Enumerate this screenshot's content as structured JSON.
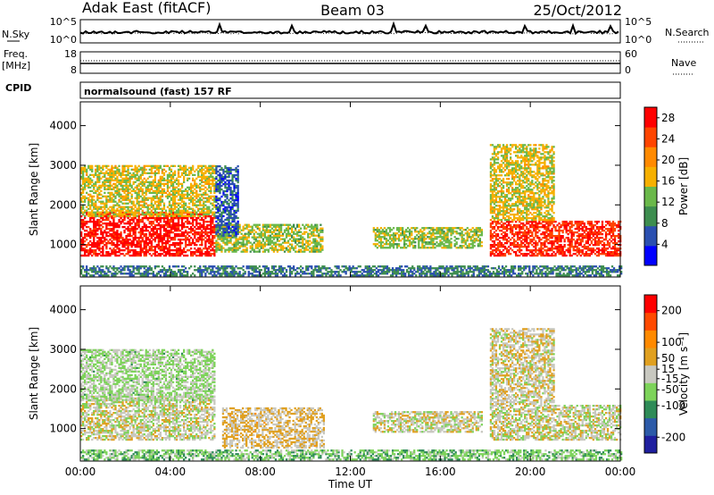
{
  "header": {
    "station": "Adak East (fitACF)",
    "beam": "Beam 03",
    "date": "25/Oct/2012"
  },
  "summary_panels": {
    "noise": {
      "left_label": "N.Sky",
      "left_ticks": [
        "10^5",
        "10^0"
      ],
      "right_ticks": [
        "10^5",
        "10^0"
      ],
      "right_label": "N.Search"
    },
    "freq": {
      "left_label_1": "Freq.",
      "left_label_2": "[MHz]",
      "left_ticks": [
        "18",
        "8"
      ],
      "right_ticks": [
        "60",
        "0"
      ],
      "right_label": "Nave"
    },
    "cpid": {
      "left_label": "CPID",
      "text": "normalsound (fast) 157 RF"
    }
  },
  "colors": {
    "power_scale": [
      "#0000ff",
      "#2a4fb0",
      "#3d8d4f",
      "#6ab84a",
      "#f6b000",
      "#ff8a00",
      "#ff4500",
      "#ff0000"
    ],
    "velocity_scale": [
      "#1f1f9f",
      "#2c5aa8",
      "#2e8b57",
      "#7dd35a",
      "#c8c8c0",
      "#e0a020",
      "#ff8a00",
      "#ff4a00",
      "#ff0000"
    ]
  },
  "chart_data": [
    {
      "type": "heatmap",
      "title": "Power",
      "ylabel": "Slant Range [km]",
      "xlabel": "",
      "x_ticks": [
        "00:00",
        "04:00",
        "08:00",
        "12:00",
        "16:00",
        "20:00",
        "00:00"
      ],
      "xlim_hours": [
        0,
        24
      ],
      "y_ticks": [
        1000,
        2000,
        3000,
        4000
      ],
      "ylim": [
        180,
        4600
      ],
      "colorbar": {
        "label": "Power [dB]",
        "ticks": [
          4,
          8,
          12,
          16,
          20,
          24,
          28
        ],
        "range": [
          0,
          30
        ]
      },
      "regions": [
        {
          "t0": 0.0,
          "t1": 6.0,
          "r0": 700,
          "r1": 1800,
          "value": 28
        },
        {
          "t0": 0.0,
          "t1": 6.0,
          "r0": 1700,
          "r1": 3000,
          "value": 16
        },
        {
          "t0": 6.0,
          "t1": 10.8,
          "r0": 800,
          "r1": 1500,
          "value": 14
        },
        {
          "t0": 6.0,
          "t1": 7.0,
          "r0": 1200,
          "r1": 3000,
          "value": 6
        },
        {
          "t0": 13.0,
          "t1": 17.8,
          "r0": 900,
          "r1": 1400,
          "value": 14
        },
        {
          "t0": 18.2,
          "t1": 24.0,
          "r0": 700,
          "r1": 1600,
          "value": 26
        },
        {
          "t0": 18.2,
          "t1": 21.0,
          "r0": 1600,
          "r1": 3500,
          "value": 16
        },
        {
          "t0": 0.0,
          "t1": 24.0,
          "r0": 200,
          "r1": 450,
          "value": 8
        }
      ]
    },
    {
      "type": "heatmap",
      "title": "Velocity",
      "ylabel": "Slant Range [km]",
      "xlabel": "Time UT",
      "x_ticks": [
        "00:00",
        "04:00",
        "08:00",
        "12:00",
        "16:00",
        "20:00",
        "00:00"
      ],
      "xlim_hours": [
        0,
        24
      ],
      "y_ticks": [
        1000,
        2000,
        3000,
        4000
      ],
      "ylim": [
        180,
        4600
      ],
      "colorbar": {
        "label": "Velocity [m s⁻¹]",
        "ticks": [
          200,
          100,
          50,
          15,
          -15,
          -50,
          -100,
          -200
        ],
        "range": [
          -250,
          250
        ]
      },
      "regions": [
        {
          "t0": 0.0,
          "t1": 6.0,
          "r0": 700,
          "r1": 1800,
          "value": 0
        },
        {
          "t0": 0.0,
          "t1": 6.0,
          "r0": 1700,
          "r1": 3000,
          "value": -30
        },
        {
          "t0": 6.3,
          "t1": 10.8,
          "r0": 500,
          "r1": 1500,
          "value": 30
        },
        {
          "t0": 13.0,
          "t1": 17.8,
          "r0": 900,
          "r1": 1400,
          "value": 0
        },
        {
          "t0": 18.2,
          "t1": 24.0,
          "r0": 700,
          "r1": 1600,
          "value": 0
        },
        {
          "t0": 18.2,
          "t1": 21.0,
          "r0": 1600,
          "r1": 3500,
          "value": 10
        },
        {
          "t0": 0.0,
          "t1": 24.0,
          "r0": 200,
          "r1": 450,
          "value": -60
        }
      ]
    }
  ]
}
